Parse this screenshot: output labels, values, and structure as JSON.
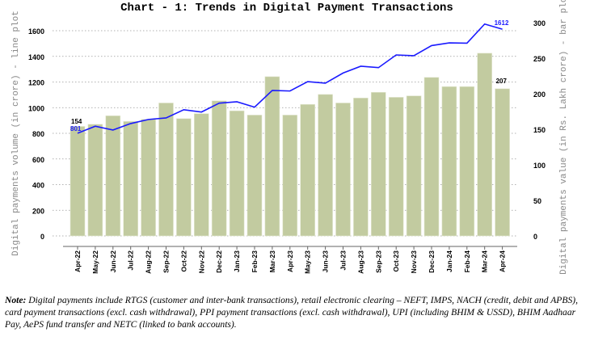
{
  "chart_data": {
    "type": "bar+line",
    "title": "Chart - 1: Trends in Digital Payment Transactions",
    "categories": [
      "Apr-22",
      "May-22",
      "Jun-22",
      "Jul-22",
      "Aug-22",
      "Sep-22",
      "Oct-22",
      "Nov-22",
      "Dec-22",
      "Jan-23",
      "Feb-23",
      "Mar-23",
      "Apr-23",
      "May-23",
      "Jun-23",
      "Jul-23",
      "Aug-23",
      "Sep-23",
      "Oct-23",
      "Nov-23",
      "Dec-23",
      "Jan-24",
      "Feb-24",
      "Mar-24",
      "Apr-24"
    ],
    "ylabel_left": "Digital payments volume (in crore) - line plot",
    "ylabel_right": "Digital payments value (in Rs. Lakh crore) - bar plot",
    "ylim_left": [
      0,
      1600
    ],
    "yticks_left": [
      0,
      200,
      400,
      600,
      800,
      1000,
      1200,
      1400,
      1600
    ],
    "ylim_right": [
      0,
      300
    ],
    "yticks_right": [
      0,
      50,
      100,
      150,
      200,
      250,
      300
    ],
    "grid": "horizontal dotted",
    "series": [
      {
        "type": "bar",
        "axis": "right",
        "color": "#c2cba0",
        "values": [
          154,
          157,
          169,
          161,
          164,
          187,
          165,
          172,
          190,
          176,
          170,
          224,
          170,
          185,
          199,
          187,
          194,
          202,
          195,
          197,
          223,
          210,
          210,
          257,
          207
        ]
      },
      {
        "type": "line",
        "axis": "left",
        "color": "#1a1aff",
        "values": [
          801,
          855,
          826,
          876,
          908,
          920,
          984,
          966,
          1035,
          1046,
          1004,
          1134,
          1130,
          1203,
          1191,
          1270,
          1323,
          1312,
          1411,
          1405,
          1484,
          1505,
          1503,
          1652,
          1612
        ]
      }
    ],
    "data_labels": {
      "bar_first": "154",
      "bar_last": "207",
      "line_first": "801",
      "line_last": "1612"
    }
  },
  "note": {
    "label": "Note:",
    "text": " Digital payments include RTGS (customer and inter-bank transactions), retail electronic clearing – NEFT, IMPS, NACH (credit, debit and APBS), card payment transactions (excl. cash withdrawal), PPI payment transactions (excl. cash withdrawal), UPI (including BHIM & USSD), BHIM Aadhaar Pay, AePS fund transfer and NETC (linked to bank accounts)."
  }
}
